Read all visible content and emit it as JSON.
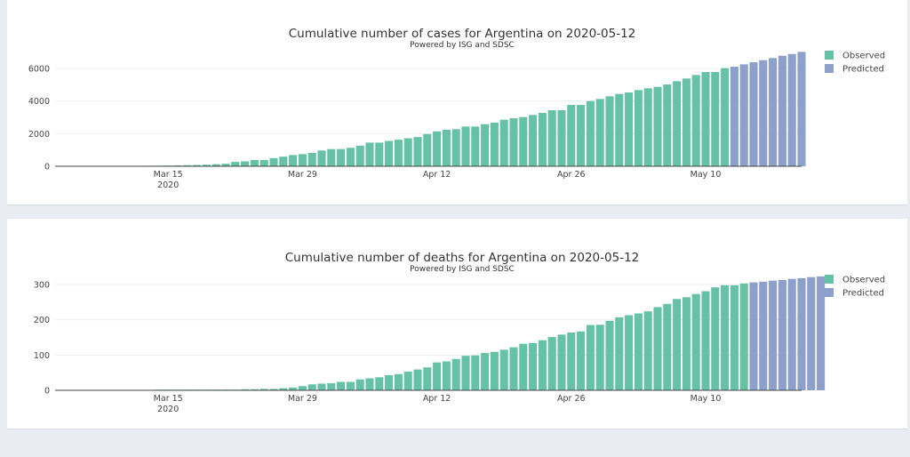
{
  "chart_data": [
    {
      "type": "bar",
      "title": "Cumulative number of cases for Argentina on 2020-05-12",
      "subtitle": "Powered by ISG and SDSC",
      "x_start": "2020-03-04",
      "x_ticks": [
        "Mar 15",
        "Mar 29",
        "Apr 12",
        "Apr 26",
        "May 10"
      ],
      "x_tick_year": "2020",
      "y_ticks": [
        "0",
        "2000",
        "4000",
        "6000"
      ],
      "ylim": [
        0,
        7300
      ],
      "grid": true,
      "legend_position": "top-right",
      "series": [
        {
          "name": "Observed",
          "color": "#66c2a5",
          "values": [
            1,
            1,
            2,
            8,
            9,
            12,
            17,
            19,
            19,
            31,
            34,
            45,
            56,
            68,
            79,
            97,
            128,
            158,
            266,
            301,
            387,
            387,
            502,
            589,
            690,
            745,
            820,
            966,
            1054,
            1054,
            1133,
            1265,
            1451,
            1451,
            1554,
            1628,
            1715,
            1795,
            1975,
            2142,
            2236,
            2273,
            2436,
            2436,
            2582,
            2673,
            2855,
            2945,
            3018,
            3145,
            3273,
            3436,
            3436,
            3764,
            3764,
            4000,
            4127,
            4291,
            4436,
            4527,
            4673,
            4782,
            4873,
            5018,
            5218,
            5382,
            5600,
            5782,
            5782,
            6018
          ]
        },
        {
          "name": "Predicted",
          "color": "#8da0cb",
          "values": [
            6109,
            6254,
            6382,
            6509,
            6636,
            6782,
            6891,
            7018
          ]
        }
      ]
    },
    {
      "type": "bar",
      "title": "Cumulative number of deaths for Argentina on 2020-05-12",
      "subtitle": "Powered by ISG and SDSC",
      "x_start": "2020-03-04",
      "x_ticks": [
        "Mar 15",
        "Mar 29",
        "Apr 12",
        "Apr 26",
        "May 10"
      ],
      "x_tick_year": "2020",
      "y_ticks": [
        "0",
        "100",
        "200",
        "300"
      ],
      "ylim": [
        0,
        330
      ],
      "grid": true,
      "legend_position": "top-right",
      "series": [
        {
          "name": "Observed",
          "color": "#66c2a5",
          "values": [
            0,
            0,
            0,
            0,
            1,
            1,
            0,
            1,
            0,
            1,
            2,
            2,
            2,
            2,
            2,
            2,
            2,
            2,
            2,
            3,
            3,
            4,
            4,
            6,
            8,
            12,
            17,
            19,
            20,
            24,
            24,
            31,
            34,
            37,
            43,
            46,
            53,
            59,
            65,
            79,
            82,
            89,
            98,
            99,
            106,
            109,
            115,
            122,
            132,
            134,
            142,
            151,
            158,
            164,
            167,
            185,
            186,
            197,
            207,
            213,
            218,
            224,
            236,
            245,
            259,
            264,
            273,
            281,
            292,
            298,
            298,
            303
          ]
        },
        {
          "name": "Predicted",
          "color": "#8da0cb",
          "values": [
            306,
            308,
            311,
            313,
            316,
            318,
            321,
            323
          ]
        }
      ]
    }
  ]
}
